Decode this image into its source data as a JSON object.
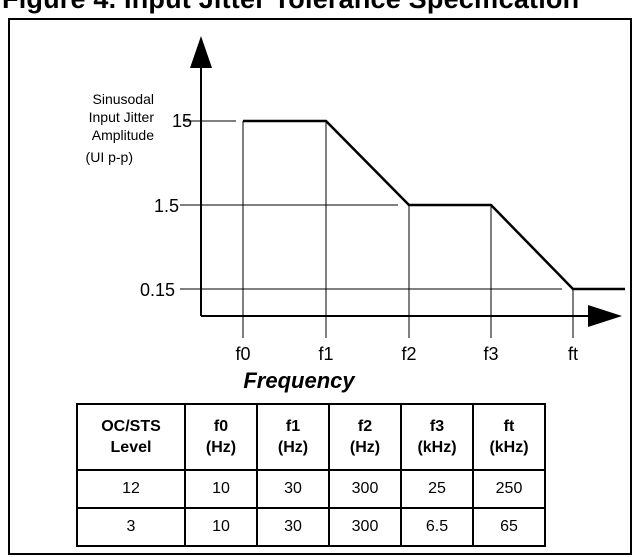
{
  "figure_title": "Figure 4. Input Jitter Tolerance Specification",
  "chart_data": {
    "type": "line",
    "title": "Input Jitter Tolerance Specification",
    "ylabel_lines": [
      "Sinusodal",
      "Input Jitter",
      "Amplitude"
    ],
    "y_unit": "(UI p-p)",
    "xlabel": "Frequency",
    "x_ticks": [
      "f0",
      "f1",
      "f2",
      "f3",
      "ft"
    ],
    "y_ticks": [
      "15",
      "1.5",
      "0.15"
    ],
    "y_scale": "log",
    "series": [
      {
        "points": [
          {
            "x": "f0",
            "y": 15
          },
          {
            "x": "f1",
            "y": 15
          },
          {
            "x": "f2",
            "y": 1.5
          },
          {
            "x": "f3",
            "y": 1.5
          },
          {
            "x": "ft",
            "y": 0.15
          },
          {
            "x": "beyond ft",
            "y": 0.15
          }
        ]
      }
    ],
    "table": {
      "headers": [
        [
          "OC/STS",
          "Level"
        ],
        [
          "f0",
          "(Hz)"
        ],
        [
          "f1",
          "(Hz)"
        ],
        [
          "f2",
          "(Hz)"
        ],
        [
          "f3",
          "(kHz)"
        ],
        [
          "ft",
          "(kHz)"
        ]
      ],
      "rows": [
        [
          "12",
          "10",
          "30",
          "300",
          "25",
          "250"
        ],
        [
          "3",
          "10",
          "30",
          "300",
          "6.5",
          "65"
        ]
      ]
    }
  }
}
